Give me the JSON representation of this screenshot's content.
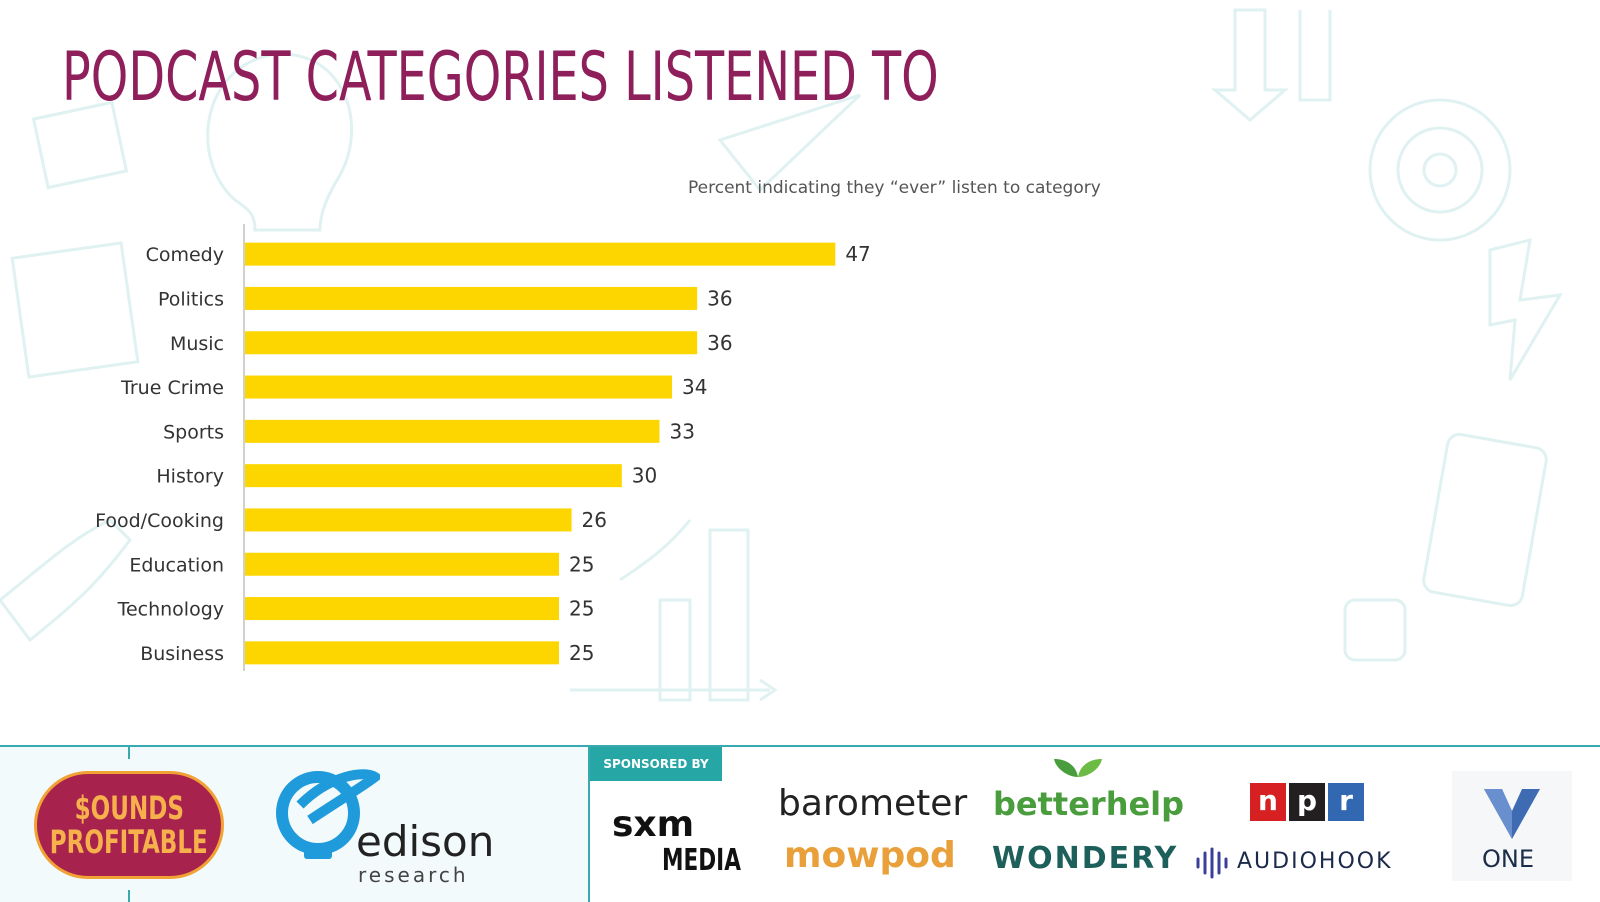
{
  "title": "PODCAST CATEGORIES LISTENED TO",
  "chart_data": {
    "type": "bar",
    "orientation": "horizontal",
    "title": "PODCAST CATEGORIES LISTENED TO",
    "subtitle": "Percent indicating they “ever” listen to category",
    "categories": [
      "Comedy",
      "Politics",
      "Music",
      "True Crime",
      "Sports",
      "History",
      "Food/Cooking",
      "Education",
      "Technology",
      "Business"
    ],
    "values": [
      47,
      36,
      36,
      34,
      33,
      30,
      26,
      25,
      25,
      25
    ],
    "xlim": [
      0,
      60
    ],
    "grid": false,
    "data_labels": true,
    "bar_color": "#fdd600"
  },
  "footer": {
    "sounds_top": "$OUNDS",
    "sounds_bottom": "PROFITABLE",
    "edison_word": "edison",
    "edison_sub": "research",
    "sponsored_label": "SPONSORED BY",
    "sxm_top": "sxm",
    "sxm_bottom": "MEDIA",
    "barometer": "barometer",
    "mowpod": "mowpod",
    "betterhelp": "betterhelp",
    "wondery": "WONDERY",
    "npr_letters": [
      "n",
      "p",
      "r"
    ],
    "audiohook": "AUDIOHOOK",
    "one": "ONE",
    "colors": {
      "teal": "#38a9ae",
      "sounds_bg": "#a8224e",
      "sounds_text": "#f6b04c",
      "edison_blue": "#1f9bdc",
      "npr_red": "#d62021",
      "npr_black": "#231f20",
      "npr_blue": "#3267b2"
    }
  }
}
